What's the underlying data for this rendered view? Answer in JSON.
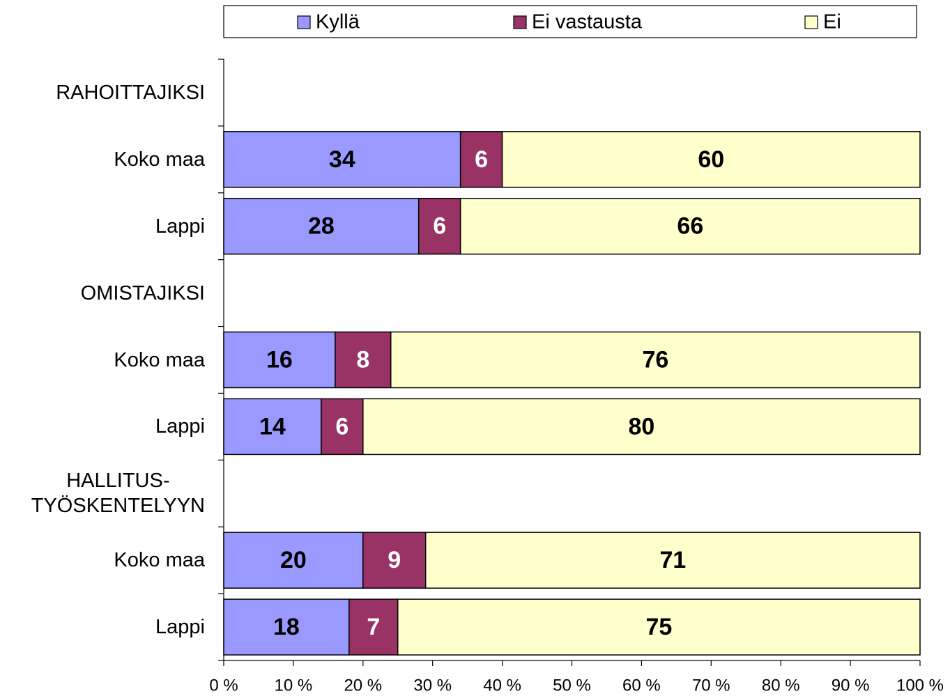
{
  "chart_data": {
    "type": "stacked_bar_horizontal",
    "categories": [
      "RAHOITTAJIKSI",
      "Koko maa",
      "Lappi",
      "OMISTAJIKSI",
      "Koko maa",
      "Lappi",
      "HALLITUS-\nTYÖSKENTELYYN",
      "Koko maa",
      "Lappi"
    ],
    "series": [
      {
        "name": "Kyllä",
        "color": "#9999ff",
        "values": [
          null,
          34,
          28,
          null,
          16,
          14,
          null,
          20,
          18
        ]
      },
      {
        "name": "Ei vastausta",
        "color": "#993366",
        "values": [
          null,
          6,
          6,
          null,
          8,
          6,
          null,
          9,
          7
        ]
      },
      {
        "name": "Ei",
        "color": "#ffffcc",
        "values": [
          null,
          60,
          66,
          null,
          76,
          80,
          null,
          71,
          75
        ]
      }
    ],
    "xlim": [
      0,
      100
    ],
    "xticks": [
      {
        "value": 0,
        "label": "0 %"
      },
      {
        "value": 10,
        "label": "10 %"
      },
      {
        "value": 20,
        "label": "20 %"
      },
      {
        "value": 30,
        "label": "30 %"
      },
      {
        "value": 40,
        "label": "40 %"
      },
      {
        "value": 50,
        "label": "50 %"
      },
      {
        "value": 60,
        "label": "60 %"
      },
      {
        "value": 70,
        "label": "70 %"
      },
      {
        "value": 80,
        "label": "80 %"
      },
      {
        "value": 90,
        "label": "90 %"
      },
      {
        "value": 100,
        "label": "100 %"
      }
    ],
    "legend": "top",
    "grid": false
  }
}
